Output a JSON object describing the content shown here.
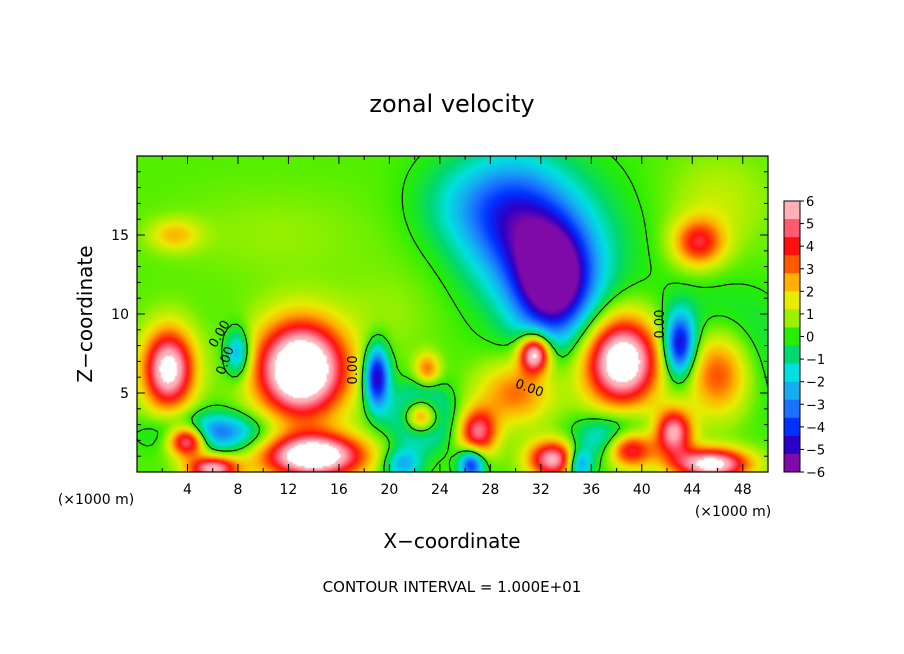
{
  "chart_data": {
    "type": "heatmap",
    "title": "zonal velocity",
    "xlabel": "X−coordinate",
    "ylabel": "Z−coordinate",
    "x_unit_label": "(×1000 m)",
    "y_unit_label": "(×1000 m)",
    "footer": "CONTOUR INTERVAL = 1.000E+01",
    "xlim": [
      0,
      50
    ],
    "ylim": [
      0,
      20
    ],
    "x_ticks": [
      4,
      8,
      12,
      16,
      20,
      24,
      28,
      32,
      36,
      40,
      44,
      48
    ],
    "y_ticks": [
      5,
      10,
      15
    ],
    "colorbar": {
      "labels": [
        "6",
        "5",
        "4",
        "3",
        "2",
        "1",
        "0",
        "−1",
        "−2",
        "−3",
        "−4",
        "−5",
        "−6"
      ],
      "range": [
        -6,
        6
      ],
      "colors": [
        "#7f0aa8",
        "#2a00c8",
        "#0030ff",
        "#1a70ff",
        "#14aef0",
        "#00e0e0",
        "#00d870",
        "#28ee00",
        "#9cf000",
        "#e8ec00",
        "#ffb000",
        "#ff5a00",
        "#ff1010",
        "#ff5a70",
        "#ffb0b8",
        "#ffffff"
      ]
    },
    "contour_labels": [
      "0.00",
      "0.00",
      "0.00",
      "0.00",
      "0.00"
    ],
    "features": [
      {
        "x": 13,
        "z": 6.5,
        "value": 9,
        "sx": 3.5,
        "sz": 3
      },
      {
        "x": 2.5,
        "z": 6.5,
        "value": 7,
        "sx": 2,
        "sz": 2.5
      },
      {
        "x": 38.5,
        "z": 7,
        "value": 8,
        "sx": 3,
        "sz": 2.8
      },
      {
        "x": 46,
        "z": 6.5,
        "value": 8,
        "sx": 3,
        "sz": 3
      },
      {
        "x": 31.5,
        "z": 7.5,
        "value": 7,
        "sx": 1.2,
        "sz": 1.2
      },
      {
        "x": 22.5,
        "z": 3.5,
        "value": 7,
        "sx": 1.4,
        "sz": 1.1
      },
      {
        "x": 4,
        "z": 2,
        "value": 7,
        "sx": 1.5,
        "sz": 1
      },
      {
        "x": 14,
        "z": 1,
        "value": 8,
        "sx": 4,
        "sz": 1.4
      },
      {
        "x": 39,
        "z": 1.5,
        "value": 7,
        "sx": 2,
        "sz": 1.2
      },
      {
        "x": 45.5,
        "z": 0.5,
        "value": 7,
        "sx": 3,
        "sz": 1
      },
      {
        "x": 6,
        "z": 0.2,
        "value": 6,
        "sx": 2,
        "sz": 0.8
      },
      {
        "x": 33,
        "z": 0.8,
        "value": 6,
        "sx": 2,
        "sz": 1.2
      },
      {
        "x": 27,
        "z": 2.5,
        "value": 5,
        "sx": 1.5,
        "sz": 1.5
      },
      {
        "x": 23,
        "z": 6.5,
        "value": 3,
        "sx": 1,
        "sz": 1
      },
      {
        "x": 42.5,
        "z": 2.5,
        "value": 6,
        "sx": 1.5,
        "sz": 1.5
      },
      {
        "x": 30,
        "z": 5,
        "value": 3,
        "sx": 3,
        "sz": 2
      },
      {
        "x": 33,
        "z": 12,
        "value": -6.5,
        "sx": 3,
        "sz": 3.5
      },
      {
        "x": 30,
        "z": 16,
        "value": -3.5,
        "sx": 4,
        "sz": 4
      },
      {
        "x": 26,
        "z": 17,
        "value": -1.5,
        "sx": 4,
        "sz": 3
      },
      {
        "x": 33,
        "z": 14,
        "value": -2,
        "sx": 6,
        "sz": 5
      },
      {
        "x": 19,
        "z": 6,
        "value": -6,
        "sx": 1,
        "sz": 2
      },
      {
        "x": 22.5,
        "z": 3.5,
        "value": -5,
        "sx": 2.2,
        "sz": 1.8
      },
      {
        "x": 6,
        "z": 2.5,
        "value": -4,
        "sx": 4,
        "sz": 1.2
      },
      {
        "x": 8,
        "z": 7.5,
        "value": -3.5,
        "sx": 1,
        "sz": 1.5
      },
      {
        "x": 43,
        "z": 8,
        "value": -5.5,
        "sx": 1.2,
        "sz": 2
      },
      {
        "x": 46,
        "z": 7,
        "value": -5,
        "sx": 4,
        "sz": 3.5
      },
      {
        "x": 38,
        "z": 2,
        "value": -4,
        "sx": 3,
        "sz": 1.5
      },
      {
        "x": 26.5,
        "z": 0.5,
        "value": -5,
        "sx": 1,
        "sz": 1
      },
      {
        "x": 35,
        "z": 0.5,
        "value": -4,
        "sx": 1,
        "sz": 1
      },
      {
        "x": 21,
        "z": 0.5,
        "value": -3,
        "sx": 1.5,
        "sz": 1
      },
      {
        "x": 44.5,
        "z": 14.5,
        "value": 4,
        "sx": 2,
        "sz": 1.5
      },
      {
        "x": 3,
        "z": 15,
        "value": 2,
        "sx": 2,
        "sz": 1
      },
      {
        "x": 11,
        "z": 15,
        "value": 0.5,
        "sx": 8,
        "sz": 3
      },
      {
        "x": 20,
        "z": 10,
        "value": 0.5,
        "sx": 4,
        "sz": 3
      },
      {
        "x": 46,
        "z": 17,
        "value": 1,
        "sx": 4,
        "sz": 3
      }
    ]
  }
}
